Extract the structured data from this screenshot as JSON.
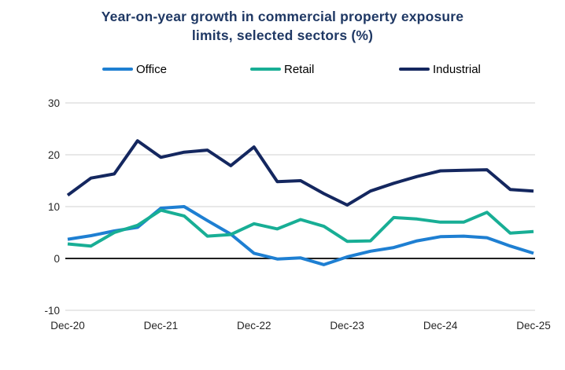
{
  "title_lines": [
    "Year-on-year growth in commercial property exposure",
    "limits, selected sectors (%)"
  ],
  "colors": {
    "title": "#1F3864",
    "office": "#1E7FD2",
    "retail": "#18AE95",
    "industrial": "#14275F",
    "gridline": "#D9D9D9",
    "zero_line": "#000000",
    "axis_text": "#262626"
  },
  "chart_data": {
    "type": "line",
    "title": "Year-on-year growth in commercial property exposure limits, selected sectors (%)",
    "x_tick_labels": [
      "Dec-20",
      "Dec-21",
      "Dec-22",
      "Dec-23",
      "Dec-24",
      "Dec-25"
    ],
    "points_per_year": 4,
    "x_frequency": "quarterly",
    "ylim": [
      -10,
      30
    ],
    "yticks": [
      30,
      20,
      10,
      0,
      -10
    ],
    "grid": "horizontal",
    "legend_position": "top",
    "series": [
      {
        "name": "Office",
        "color": "#1E7FD2",
        "values": [
          3.7,
          4.4,
          5.3,
          6.0,
          9.7,
          10.0,
          7.3,
          4.7,
          1.0,
          -0.1,
          0.1,
          -1.2,
          0.3,
          1.4,
          2.1,
          3.4,
          4.2,
          4.3,
          4.0,
          2.4,
          1.0
        ]
      },
      {
        "name": "Retail",
        "color": "#18AE95",
        "values": [
          2.8,
          2.4,
          5.0,
          6.4,
          9.3,
          8.2,
          4.3,
          4.6,
          6.7,
          5.7,
          7.5,
          6.2,
          3.3,
          3.4,
          7.9,
          7.6,
          7.0,
          7.0,
          8.9,
          4.9,
          5.2
        ]
      },
      {
        "name": "Industrial",
        "color": "#14275F",
        "values": [
          12.2,
          15.5,
          16.3,
          22.7,
          19.5,
          20.5,
          20.9,
          17.9,
          21.5,
          14.8,
          15.0,
          12.5,
          10.3,
          13.0,
          14.5,
          15.8,
          16.9,
          17.0,
          17.1,
          13.3,
          13.0
        ]
      }
    ]
  }
}
